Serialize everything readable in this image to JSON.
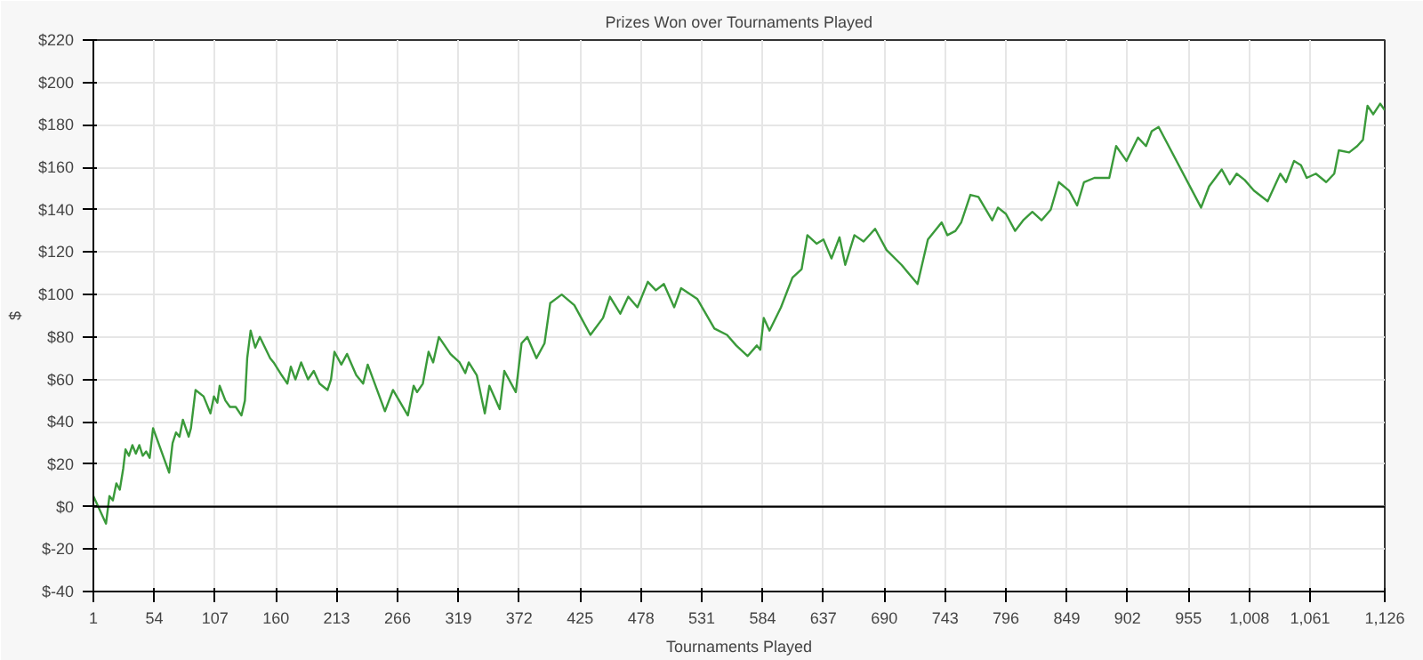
{
  "chart_data": {
    "type": "line",
    "title": "Prizes Won over Tournaments Played",
    "xlabel": "Tournaments Played",
    "ylabel": "$",
    "xlim": [
      1,
      1126
    ],
    "ylim": [
      -40,
      220
    ],
    "xticks": [
      1,
      54,
      107,
      160,
      213,
      266,
      319,
      372,
      425,
      478,
      531,
      584,
      637,
      690,
      743,
      796,
      849,
      902,
      955,
      {
        "value": 1008,
        "label": "1,008"
      },
      {
        "value": 1061,
        "label": "1,061"
      },
      {
        "value": 1126,
        "label": "1,126"
      }
    ],
    "yticks": [
      {
        "value": -40,
        "label": "$-40"
      },
      {
        "value": -20,
        "label": "$-20"
      },
      {
        "value": 0,
        "label": "$0"
      },
      {
        "value": 20,
        "label": "$20"
      },
      {
        "value": 40,
        "label": "$40"
      },
      {
        "value": 60,
        "label": "$60"
      },
      {
        "value": 80,
        "label": "$80"
      },
      {
        "value": 100,
        "label": "$100"
      },
      {
        "value": 120,
        "label": "$120"
      },
      {
        "value": 140,
        "label": "$140"
      },
      {
        "value": 160,
        "label": "$160"
      },
      {
        "value": 180,
        "label": "$180"
      },
      {
        "value": 200,
        "label": "$200"
      },
      {
        "value": 220,
        "label": "$220"
      }
    ],
    "grid": true,
    "line_style": "solid",
    "marker": "none",
    "ref_lines": [
      {
        "axis": "y",
        "value": 0,
        "color": "#000000"
      }
    ],
    "series": [
      {
        "color": "#3a9a3a",
        "x": [
          1,
          12,
          15,
          18,
          21,
          24,
          27,
          29,
          32,
          35,
          38,
          41,
          44,
          47,
          50,
          53,
          67,
          70,
          73,
          76,
          79,
          84,
          86,
          90,
          97,
          103,
          106,
          109,
          111,
          116,
          120,
          125,
          130,
          133,
          135,
          138,
          142,
          146,
          155,
          158,
          165,
          170,
          173,
          177,
          182,
          188,
          193,
          198,
          205,
          208,
          211,
          217,
          222,
          230,
          236,
          240,
          255,
          262,
          275,
          280,
          283,
          288,
          293,
          297,
          302,
          312,
          320,
          325,
          328,
          335,
          342,
          346,
          355,
          359,
          369,
          374,
          379,
          387,
          394,
          399,
          409,
          420,
          434,
          445,
          451,
          460,
          467,
          475,
          484,
          491,
          498,
          507,
          513,
          527,
          542,
          553,
          561,
          571,
          579,
          582,
          585,
          590,
          600,
          610,
          618,
          623,
          631,
          637,
          644,
          651,
          656,
          664,
          672,
          682,
          692,
          705,
          719,
          728,
          740,
          745,
          752,
          757,
          765,
          772,
          784,
          789,
          796,
          804,
          811,
          819,
          827,
          835,
          842,
          851,
          858,
          864,
          873,
          886,
          892,
          901,
          911,
          918,
          923,
          929,
          966,
          973,
          984,
          991,
          997,
          1004,
          1012,
          1024,
          1035,
          1040,
          1047,
          1053,
          1058,
          1066,
          1075,
          1082,
          1086,
          1095,
          1102,
          1107,
          1111,
          1116,
          1122,
          1126
        ],
        "values": [
          5,
          -8,
          5,
          3,
          11,
          8,
          18,
          27,
          24,
          29,
          25,
          29,
          24,
          26,
          23,
          37,
          16,
          30,
          35,
          33,
          41,
          33,
          37,
          55,
          52,
          44,
          52,
          49,
          57,
          50,
          47,
          47,
          43,
          50,
          70,
          83,
          75,
          80,
          70,
          68,
          62,
          58,
          66,
          60,
          68,
          60,
          64,
          58,
          55,
          60,
          73,
          67,
          72,
          62,
          58,
          67,
          45,
          55,
          43,
          57,
          54,
          58,
          73,
          68,
          80,
          72,
          68,
          63,
          68,
          62,
          44,
          57,
          46,
          64,
          54,
          77,
          80,
          70,
          77,
          96,
          100,
          95,
          81,
          89,
          99,
          91,
          99,
          94,
          106,
          102,
          105,
          94,
          103,
          98,
          84,
          81,
          76,
          71,
          76,
          74,
          89,
          83,
          94,
          108,
          112,
          128,
          124,
          126,
          117,
          127,
          114,
          128,
          125,
          131,
          121,
          114,
          105,
          126,
          134,
          128,
          130,
          134,
          147,
          146,
          135,
          141,
          138,
          130,
          135,
          139,
          135,
          140,
          153,
          149,
          142,
          153,
          155,
          155,
          170,
          163,
          174,
          170,
          177,
          179,
          141,
          151,
          159,
          152,
          157,
          154,
          149,
          144,
          157,
          153,
          163,
          161,
          155,
          157,
          153,
          157,
          168,
          167,
          170,
          173,
          189,
          185,
          190,
          187
        ]
      }
    ]
  }
}
